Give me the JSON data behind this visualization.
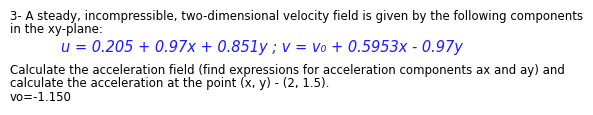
{
  "line1": "3- A steady, incompressible, two-dimensional velocity field is given by the following components",
  "line2": "in the xy-plane:",
  "eq_u": "u",
  "eq_u_rest": " = 0.205 + 0.97",
  "eq_x": "x",
  "eq_plus1": " + 0.851",
  "eq_y1": "y",
  "eq_semi": " ; ",
  "eq_v": "v",
  "eq_v_rest": " = ",
  "eq_v0": "v",
  "eq_0": "0",
  "eq_plus2": " + 0.5953",
  "eq_x2": "x",
  "eq_minus": " - 0.97",
  "eq_y2": "y",
  "equation_plain": "u = 0.205 + 0.97x + 0.851y ; v = v₀ + 0.5953x - 0.97y",
  "line3": "Calculate the acceleration field (find expressions for acceleration components ax and ay) and",
  "line4": "calculate the acceleration at the point (x, y) - (2, 1.5).",
  "line5": "vo=-1.150",
  "text_color": "#000000",
  "eq_color": "#1a1aff",
  "bg_color": "#ffffff",
  "body_fontsize": 8.5,
  "eq_fontsize": 10.5
}
